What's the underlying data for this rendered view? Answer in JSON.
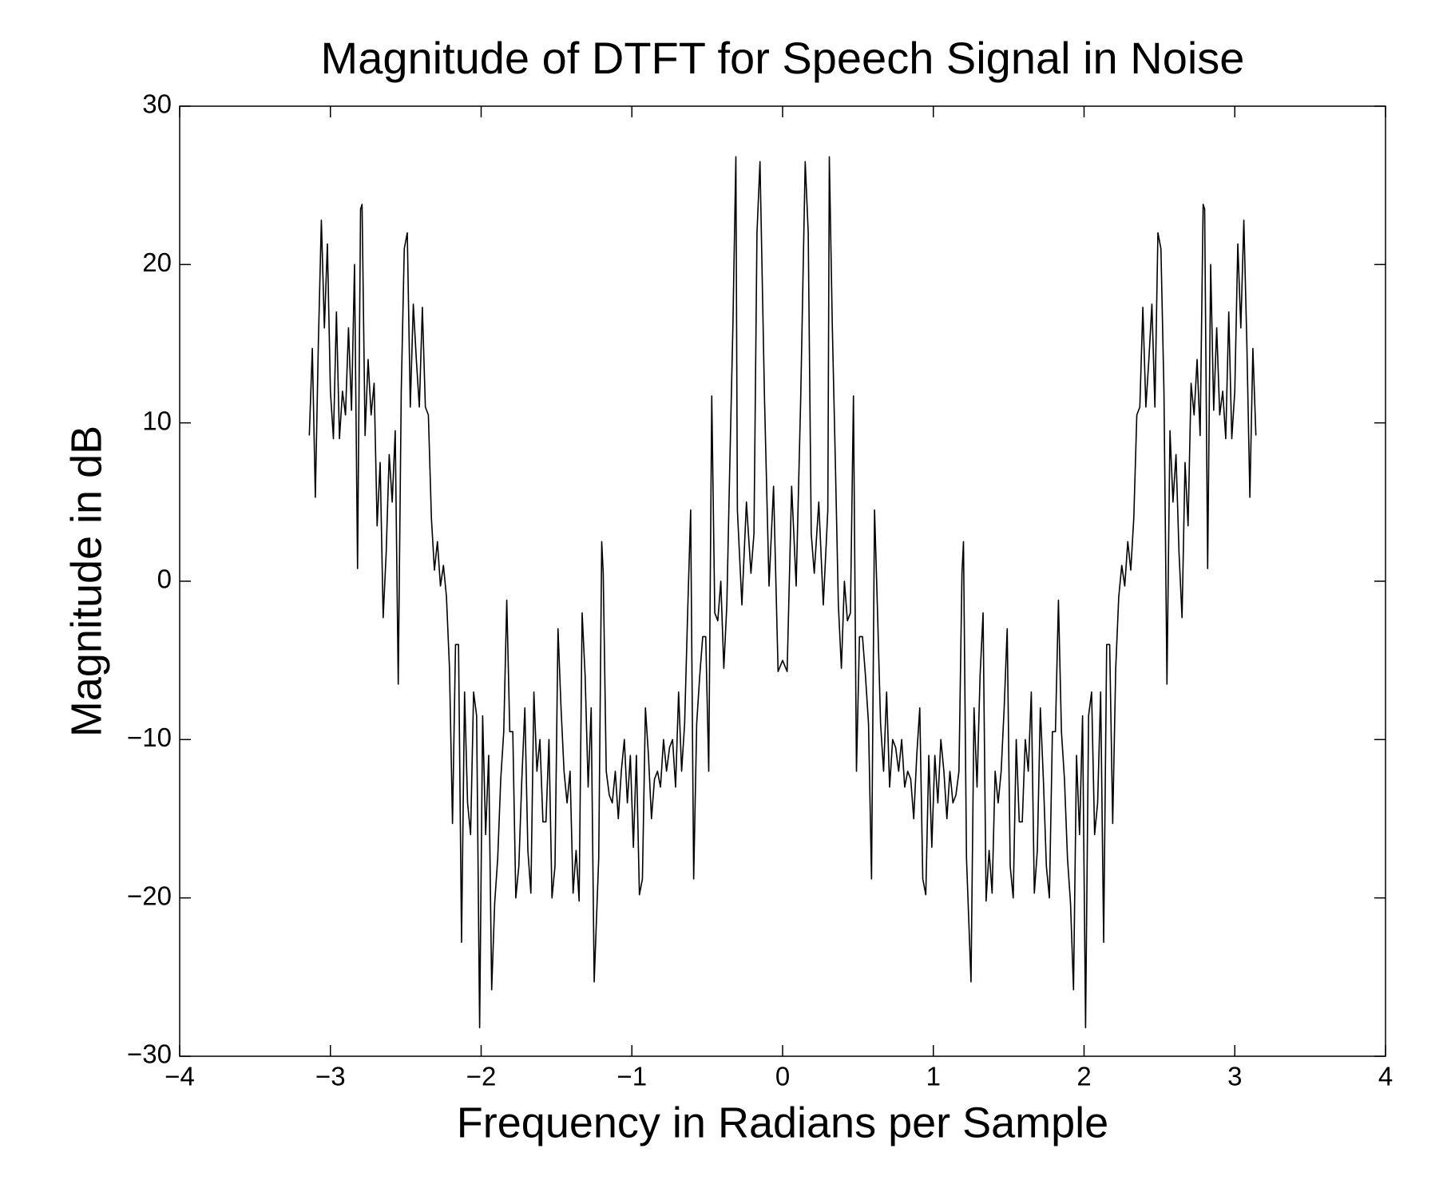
{
  "chart_data": {
    "type": "line",
    "title": "Magnitude of DTFT for Speech Signal in Noise",
    "xlabel": "Frequency in Radians per Sample",
    "ylabel": "Magnitude in dB",
    "color": "#000000",
    "xlim": [
      -4,
      4
    ],
    "ylim": [
      -30,
      30
    ],
    "xticks": [
      {
        "value": -4,
        "label": "−4"
      },
      {
        "value": -3,
        "label": "−3"
      },
      {
        "value": -2,
        "label": "−2"
      },
      {
        "value": -1,
        "label": "−1"
      },
      0,
      1,
      2,
      3,
      4
    ],
    "yticks": [
      {
        "value": -30,
        "label": "−30"
      },
      {
        "value": -20,
        "label": "−20"
      },
      {
        "value": -10,
        "label": "−10"
      },
      0,
      10,
      20,
      30
    ],
    "grid": false,
    "x": [
      -3.14,
      -3.12,
      -3.1,
      -3.08,
      -3.06,
      -3.04,
      -3.02,
      -3.0,
      -2.98,
      -2.96,
      -2.94,
      -2.92,
      -2.9,
      -2.88,
      -2.86,
      -2.84,
      -2.82,
      -2.8,
      -2.79,
      -2.77,
      -2.75,
      -2.73,
      -2.71,
      -2.69,
      -2.67,
      -2.65,
      -2.63,
      -2.61,
      -2.59,
      -2.57,
      -2.55,
      -2.53,
      -2.51,
      -2.49,
      -2.47,
      -2.45,
      -2.43,
      -2.41,
      -2.39,
      -2.37,
      -2.35,
      -2.33,
      -2.31,
      -2.29,
      -2.27,
      -2.25,
      -2.23,
      -2.21,
      -2.19,
      -2.17,
      -2.15,
      -2.13,
      -2.11,
      -2.09,
      -2.07,
      -2.05,
      -2.03,
      -2.01,
      -1.99,
      -1.97,
      -1.95,
      -1.93,
      -1.91,
      -1.89,
      -1.87,
      -1.85,
      -1.83,
      -1.81,
      -1.79,
      -1.77,
      -1.75,
      -1.73,
      -1.71,
      -1.69,
      -1.67,
      -1.65,
      -1.63,
      -1.61,
      -1.59,
      -1.57,
      -1.55,
      -1.53,
      -1.51,
      -1.49,
      -1.47,
      -1.45,
      -1.43,
      -1.41,
      -1.39,
      -1.37,
      -1.35,
      -1.33,
      -1.31,
      -1.29,
      -1.27,
      -1.25,
      -1.22,
      -1.2,
      -1.19,
      -1.17,
      -1.15,
      -1.13,
      -1.11,
      -1.09,
      -1.07,
      -1.05,
      -1.03,
      -1.01,
      -0.99,
      -0.97,
      -0.95,
      -0.93,
      -0.91,
      -0.89,
      -0.87,
      -0.85,
      -0.83,
      -0.81,
      -0.79,
      -0.77,
      -0.75,
      -0.73,
      -0.71,
      -0.69,
      -0.67,
      -0.65,
      -0.63,
      -0.61,
      -0.59,
      -0.57,
      -0.55,
      -0.53,
      -0.51,
      -0.49,
      -0.47,
      -0.45,
      -0.43,
      -0.41,
      -0.39,
      -0.37,
      -0.35,
      -0.33,
      -0.31,
      -0.3,
      -0.27,
      -0.24,
      -0.21,
      -0.19,
      -0.17,
      -0.15,
      -0.12,
      -0.09,
      -0.06,
      -0.03,
      0,
      0.03,
      0.06,
      0.09,
      0.12,
      0.15,
      0.17,
      0.19,
      0.21,
      0.24,
      0.27,
      0.3,
      0.31,
      0.33,
      0.35,
      0.37,
      0.39,
      0.41,
      0.43,
      0.45,
      0.47,
      0.49,
      0.51,
      0.53,
      0.55,
      0.57,
      0.59,
      0.61,
      0.63,
      0.65,
      0.67,
      0.69,
      0.71,
      0.73,
      0.75,
      0.77,
      0.79,
      0.81,
      0.83,
      0.85,
      0.87,
      0.89,
      0.91,
      0.93,
      0.95,
      0.97,
      0.99,
      1.01,
      1.03,
      1.05,
      1.07,
      1.09,
      1.11,
      1.13,
      1.15,
      1.17,
      1.19,
      1.2,
      1.22,
      1.25,
      1.27,
      1.29,
      1.31,
      1.33,
      1.35,
      1.37,
      1.39,
      1.41,
      1.43,
      1.45,
      1.47,
      1.49,
      1.51,
      1.53,
      1.55,
      1.57,
      1.59,
      1.61,
      1.63,
      1.65,
      1.67,
      1.69,
      1.71,
      1.73,
      1.75,
      1.77,
      1.79,
      1.81,
      1.83,
      1.85,
      1.87,
      1.89,
      1.91,
      1.93,
      1.95,
      1.97,
      1.99,
      2.01,
      2.03,
      2.05,
      2.07,
      2.09,
      2.11,
      2.13,
      2.15,
      2.17,
      2.19,
      2.21,
      2.23,
      2.25,
      2.27,
      2.29,
      2.31,
      2.33,
      2.35,
      2.37,
      2.39,
      2.41,
      2.43,
      2.45,
      2.47,
      2.49,
      2.51,
      2.53,
      2.55,
      2.57,
      2.59,
      2.61,
      2.63,
      2.65,
      2.67,
      2.69,
      2.71,
      2.73,
      2.75,
      2.77,
      2.79,
      2.8,
      2.82,
      2.84,
      2.86,
      2.88,
      2.9,
      2.92,
      2.94,
      2.96,
      2.98,
      3.0,
      3.02,
      3.04,
      3.06,
      3.08,
      3.1,
      3.12,
      3.14
    ],
    "values": [
      9.2,
      14.7,
      5.3,
      15,
      22.8,
      16,
      21.3,
      12,
      9,
      17,
      9,
      12,
      10.5,
      16,
      10.8,
      20,
      0.8,
      23.5,
      23.8,
      9.2,
      14,
      10.5,
      12.5,
      3.5,
      7.5,
      -2.3,
      1.8,
      8,
      5,
      9.5,
      -6.5,
      12,
      21,
      22,
      11,
      17.5,
      14,
      11,
      17.3,
      11,
      10.5,
      4,
      0.7,
      2.5,
      -0.3,
      1,
      -1,
      -5.5,
      -15.3,
      -4,
      -4,
      -22.8,
      -7,
      -14,
      -16,
      -7,
      -8.5,
      -28.2,
      -8.5,
      -16,
      -11,
      -25.8,
      -20.3,
      -17.5,
      -12.5,
      -9.5,
      -1.2,
      -9.5,
      -9.5,
      -20,
      -18,
      -12.5,
      -8,
      -17,
      -19.7,
      -7,
      -12,
      -10,
      -15.2,
      -15.2,
      -10,
      -20,
      -18,
      -3,
      -8,
      -12,
      -14,
      -12,
      -19.7,
      -17,
      -20.2,
      -2,
      -6,
      -13,
      -8,
      -25.3,
      -17.5,
      2.5,
      0.5,
      -12,
      -13.5,
      -14,
      -12,
      -15,
      -12,
      -10,
      -14,
      -11,
      -16.8,
      -11,
      -19.8,
      -18.8,
      -8,
      -11,
      -15,
      -12.5,
      -12,
      -13,
      -10,
      -12,
      -10.5,
      -10,
      -13,
      -7,
      -12,
      -9,
      -2,
      4.5,
      -18.8,
      -9,
      -6,
      -3.5,
      -3.5,
      -12,
      11.7,
      -2,
      -2.5,
      0,
      -5.5,
      -1.5,
      7.5,
      16,
      26.8,
      4.5,
      -1.5,
      5,
      0.5,
      3,
      22,
      26.5,
      11.5,
      -0.3,
      6,
      -5.7,
      -5,
      -5.7,
      6,
      -0.3,
      11.5,
      26.5,
      22,
      3,
      0.5,
      5,
      -1.5,
      4.5,
      26.8,
      16,
      7.5,
      -1.5,
      -5.5,
      0,
      -2.5,
      -2,
      11.7,
      -12,
      -3.5,
      -3.5,
      -6,
      -9,
      -18.8,
      4.5,
      -2,
      -9,
      -12,
      -7,
      -13,
      -10,
      -10.5,
      -12,
      -10,
      -13,
      -12,
      -12.5,
      -15,
      -11,
      -8,
      -18.8,
      -19.8,
      -11,
      -16.8,
      -11,
      -14,
      -10,
      -12,
      -15,
      -12,
      -14,
      -13.5,
      -12,
      0.5,
      2.5,
      -17.5,
      -25.3,
      -8,
      -13,
      -6,
      -2,
      -20.2,
      -17,
      -19.7,
      -12,
      -14,
      -12,
      -8,
      -3,
      -18,
      -20,
      -10,
      -15.2,
      -15.2,
      -10,
      -12,
      -7,
      -19.7,
      -17,
      -8,
      -12.5,
      -18,
      -20,
      -9.5,
      -9.5,
      -1.2,
      -9.5,
      -12.5,
      -17.5,
      -20.3,
      -25.8,
      -11,
      -16,
      -8.5,
      -28.2,
      -8.5,
      -7,
      -16,
      -14,
      -7,
      -22.8,
      -4,
      -4,
      -15.3,
      -5.5,
      -1,
      1,
      -0.3,
      2.5,
      0.7,
      4,
      10.5,
      11,
      17.3,
      11,
      14,
      17.5,
      11,
      22,
      21,
      12,
      -6.5,
      9.5,
      5,
      8,
      1.8,
      -2.3,
      7.5,
      3.5,
      12.5,
      10.5,
      14,
      9.2,
      23.8,
      23.5,
      0.8,
      20,
      10.8,
      16,
      10.5,
      12,
      9,
      17,
      9,
      12,
      21.3,
      16,
      22.8,
      15,
      5.3,
      14.7,
      9.2
    ]
  }
}
